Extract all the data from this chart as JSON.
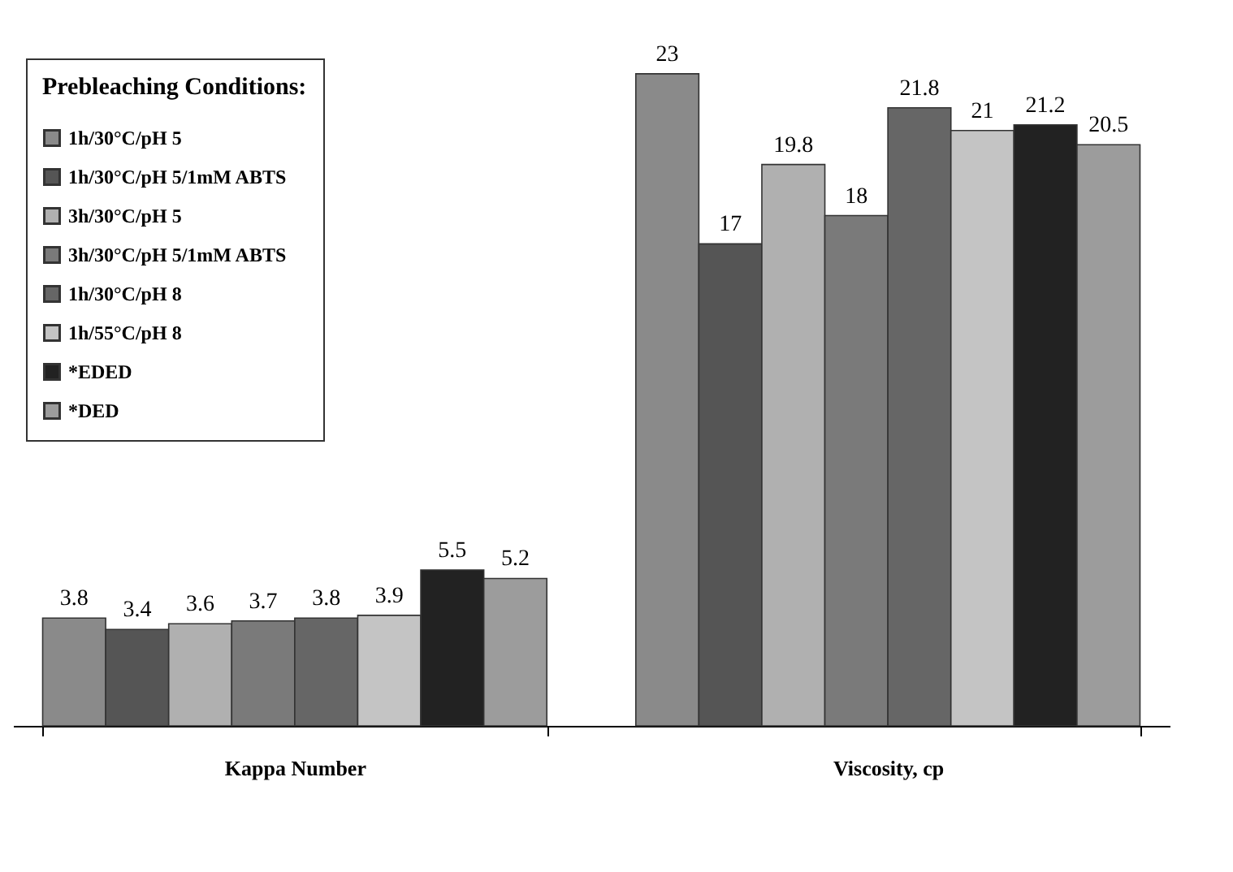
{
  "chart_data": {
    "type": "bar",
    "legend_title": "Prebleaching Conditions:",
    "categories": [
      "Kappa Number",
      "Viscosity, cp"
    ],
    "series": [
      {
        "name": "1h/30°C/pH 5",
        "color": "#8a8a8a",
        "values": [
          3.8,
          23
        ]
      },
      {
        "name": "1h/30°C/pH 5/1mM ABTS",
        "color": "#555555",
        "values": [
          3.4,
          17
        ]
      },
      {
        "name": "3h/30°C/pH 5",
        "color": "#b0b0b0",
        "values": [
          3.6,
          19.8
        ]
      },
      {
        "name": "3h/30°C/pH 5/1mM ABTS",
        "color": "#7a7a7a",
        "values": [
          3.7,
          18
        ]
      },
      {
        "name": "1h/30°C/pH 8",
        "color": "#666666",
        "values": [
          3.8,
          21.8
        ]
      },
      {
        "name": "1h/55°C/pH 8",
        "color": "#c4c4c4",
        "values": [
          3.9,
          21
        ]
      },
      {
        "name": "*EDED",
        "color": "#222222",
        "values": [
          5.5,
          21.2
        ]
      },
      {
        "name": "*DED",
        "color": "#9c9c9c",
        "values": [
          5.2,
          20.5
        ]
      }
    ],
    "data_labels": true,
    "grid": false,
    "legend": "top left"
  }
}
